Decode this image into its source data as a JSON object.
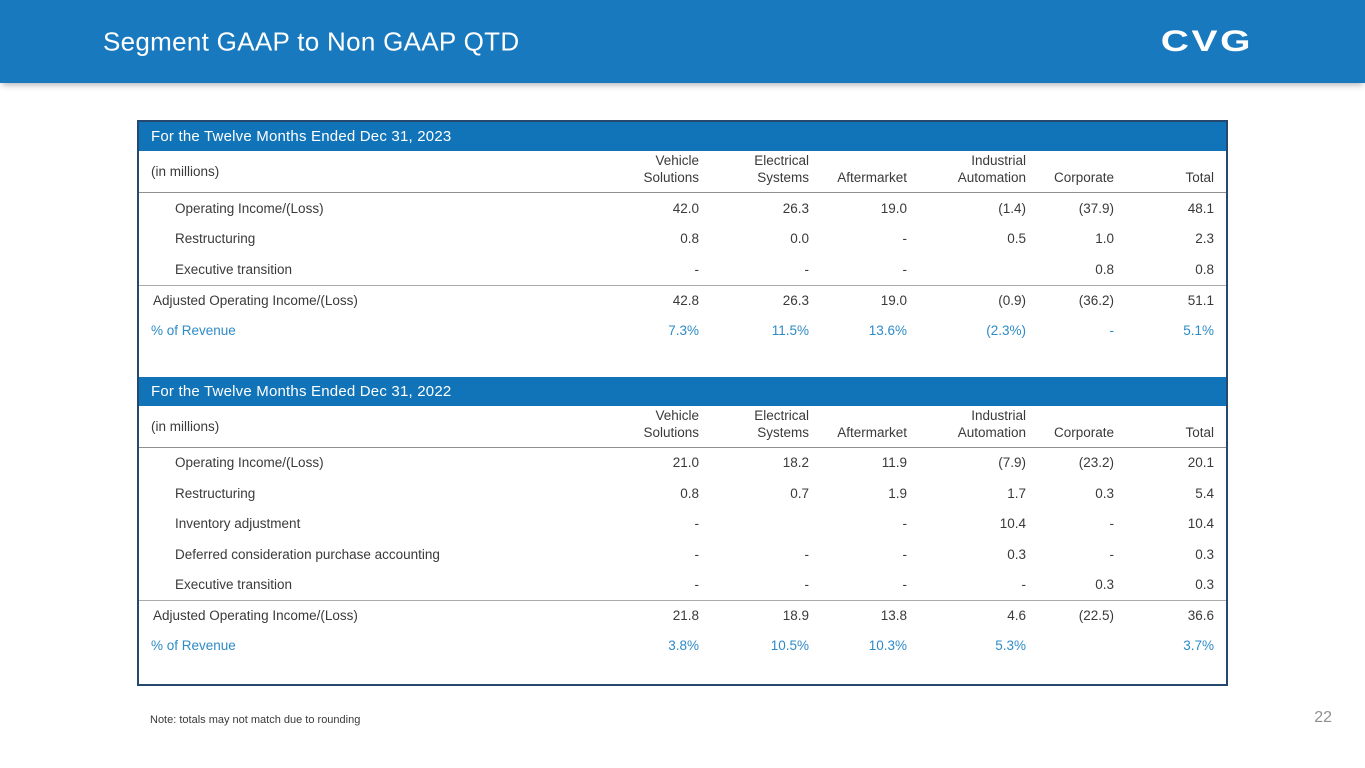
{
  "header": {
    "title": "Segment GAAP to Non GAAP QTD",
    "logo": "CVG"
  },
  "columns": [
    "Vehicle\nSolutions",
    "Electrical\nSystems",
    "Aftermarket",
    "Industrial\nAutomation",
    "Corporate",
    "Total"
  ],
  "tables": [
    {
      "title": "For the Twelve Months Ended Dec 31, 2023",
      "unit_label": "(in millions)",
      "rows": [
        {
          "label": "Operating Income/(Loss)",
          "style": "normal",
          "values": [
            "42.0",
            "26.3",
            "19.0",
            "(1.4)",
            "(37.9)",
            "48.1"
          ]
        },
        {
          "label": "Restructuring",
          "style": "normal",
          "values": [
            "0.8",
            "0.0",
            "-",
            "0.5",
            "1.0",
            "2.3"
          ]
        },
        {
          "label": "Executive transition",
          "style": "normal",
          "values": [
            "-",
            "-",
            "-",
            "",
            "0.8",
            "0.8"
          ]
        },
        {
          "label": "Adjusted Operating Income/(Loss)",
          "style": "adjusted",
          "values": [
            "42.8",
            "26.3",
            "19.0",
            "(0.9)",
            "(36.2)",
            "51.1"
          ]
        },
        {
          "label": "% of Revenue",
          "style": "percent",
          "values": [
            "7.3%",
            "11.5%",
            "13.6%",
            "(2.3%)",
            "-",
            "5.1%"
          ]
        }
      ]
    },
    {
      "title": "For the Twelve Months Ended Dec 31, 2022",
      "unit_label": "(in millions)",
      "rows": [
        {
          "label": "Operating Income/(Loss)",
          "style": "normal",
          "values": [
            "21.0",
            "18.2",
            "11.9",
            "(7.9)",
            "(23.2)",
            "20.1"
          ]
        },
        {
          "label": "Restructuring",
          "style": "normal",
          "values": [
            "0.8",
            "0.7",
            "1.9",
            "1.7",
            "0.3",
            "5.4"
          ]
        },
        {
          "label": "Inventory adjustment",
          "style": "normal",
          "values": [
            "-",
            "",
            "-",
            "10.4",
            "-",
            "10.4"
          ]
        },
        {
          "label": "Deferred consideration purchase accounting",
          "style": "normal",
          "values": [
            "-",
            "-",
            "-",
            "0.3",
            "-",
            "0.3"
          ]
        },
        {
          "label": "Executive transition",
          "style": "normal",
          "values": [
            "-",
            "-",
            "-",
            "-",
            "0.3",
            "0.3"
          ]
        },
        {
          "label": "Adjusted Operating Income/(Loss)",
          "style": "adjusted",
          "values": [
            "21.8",
            "18.9",
            "13.8",
            "4.6",
            "(22.5)",
            "36.6"
          ]
        },
        {
          "label": "% of Revenue",
          "style": "percent",
          "values": [
            "3.8%",
            "10.5%",
            "10.3%",
            "5.3%",
            "",
            "3.7%"
          ]
        }
      ]
    }
  ],
  "footer": {
    "note": "Note: totals may not match due to rounding",
    "page_number": "22"
  },
  "colors": {
    "banner_blue": "#1879BE",
    "section_bar_blue": "#1173B8",
    "box_border": "#26476E",
    "percent_blue": "#2E8BC8",
    "body_text": "#3A3A3A",
    "page_number_gray": "#909090"
  }
}
